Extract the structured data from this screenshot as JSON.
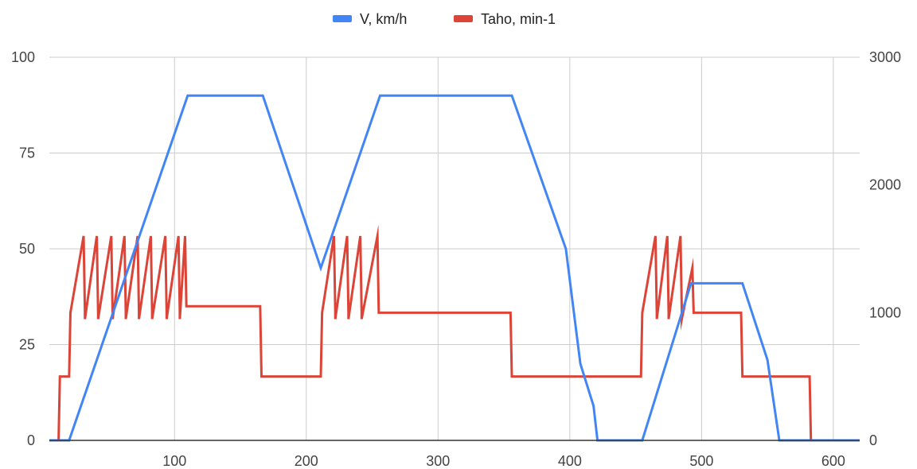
{
  "chart_data": {
    "type": "line",
    "legend": {
      "position": "top"
    },
    "grid": true,
    "x_axis": {
      "range": [
        5,
        620
      ],
      "ticks": [
        100,
        200,
        300,
        400,
        500,
        600
      ],
      "tick_labels": [
        "100",
        "200",
        "300",
        "400",
        "500",
        "600"
      ]
    },
    "y_left": {
      "range": [
        0,
        100
      ],
      "ticks": [
        0,
        25,
        50,
        75,
        100
      ],
      "tick_labels": [
        "0",
        "25",
        "50",
        "75",
        "100"
      ]
    },
    "y_right": {
      "range": [
        0,
        3000
      ],
      "ticks": [
        0,
        1000,
        2000,
        3000
      ],
      "tick_labels": [
        "0",
        "1000",
        "2000",
        "3000"
      ]
    },
    "series": [
      {
        "name": "V, km/h",
        "axis": "left",
        "color": "#4285f4",
        "points": [
          [
            0,
            0
          ],
          [
            20,
            0
          ],
          [
            110,
            90
          ],
          [
            167,
            90
          ],
          [
            211,
            45
          ],
          [
            256,
            90
          ],
          [
            356,
            90
          ],
          [
            397,
            50
          ],
          [
            408,
            20
          ],
          [
            418,
            9
          ],
          [
            421,
            0
          ],
          [
            455,
            0
          ],
          [
            492,
            41
          ],
          [
            531,
            41
          ],
          [
            550,
            21
          ],
          [
            559,
            0
          ],
          [
            620,
            0
          ]
        ]
      },
      {
        "name": "Taho, min-1",
        "axis": "right",
        "color": "#db4437",
        "points": [
          [
            0,
            0
          ],
          [
            12,
            0
          ],
          [
            13,
            500
          ],
          [
            20,
            500
          ],
          [
            21,
            1000
          ],
          [
            31,
            1600
          ],
          [
            32,
            1000
          ],
          [
            32,
            950
          ],
          [
            41,
            1600
          ],
          [
            42,
            1000
          ],
          [
            42,
            950
          ],
          [
            52,
            1600
          ],
          [
            53,
            1000
          ],
          [
            53,
            950
          ],
          [
            62,
            1600
          ],
          [
            63,
            1000
          ],
          [
            63,
            950
          ],
          [
            72,
            1600
          ],
          [
            73,
            1000
          ],
          [
            73,
            950
          ],
          [
            82,
            1600
          ],
          [
            83,
            1000
          ],
          [
            83,
            950
          ],
          [
            93,
            1600
          ],
          [
            94,
            1000
          ],
          [
            94,
            950
          ],
          [
            103,
            1600
          ],
          [
            104,
            1000
          ],
          [
            104,
            950
          ],
          [
            108,
            1600
          ],
          [
            109,
            1050
          ],
          [
            165,
            1050
          ],
          [
            166,
            500
          ],
          [
            211,
            500
          ],
          [
            212,
            1000
          ],
          [
            221,
            1600
          ],
          [
            222,
            1000
          ],
          [
            222,
            950
          ],
          [
            231,
            1600
          ],
          [
            232,
            1000
          ],
          [
            232,
            950
          ],
          [
            241,
            1600
          ],
          [
            242,
            1000
          ],
          [
            242,
            950
          ],
          [
            254,
            1600
          ],
          [
            255,
            1000
          ],
          [
            355,
            1000
          ],
          [
            356,
            500
          ],
          [
            454,
            500
          ],
          [
            455,
            1000
          ],
          [
            465,
            1600
          ],
          [
            466,
            1000
          ],
          [
            466,
            950
          ],
          [
            474,
            1600
          ],
          [
            475,
            1000
          ],
          [
            475,
            950
          ],
          [
            484,
            1600
          ],
          [
            485,
            1000
          ],
          [
            485,
            950
          ],
          [
            493,
            1350
          ],
          [
            494,
            1000
          ],
          [
            530,
            1000
          ],
          [
            531,
            500
          ],
          [
            582,
            500
          ],
          [
            583,
            0
          ],
          [
            620,
            0
          ]
        ]
      }
    ]
  }
}
